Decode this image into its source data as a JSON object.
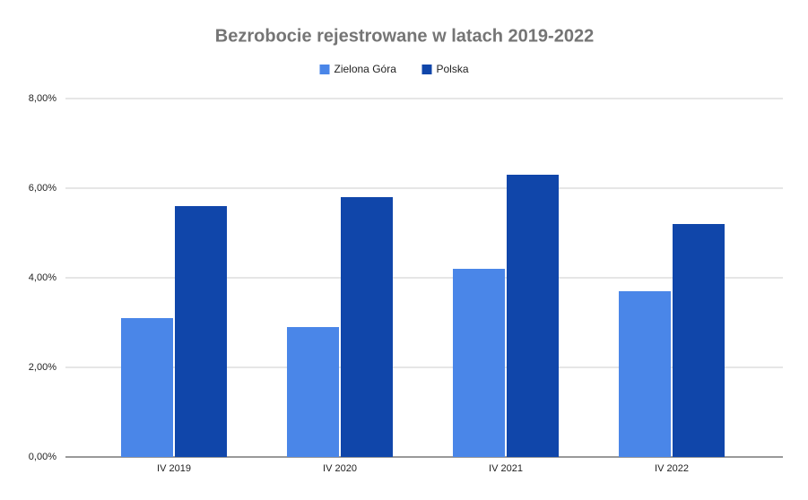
{
  "chart_data": {
    "type": "bar",
    "title": "Bezrobocie rejestrowane w latach 2019-2022",
    "categories": [
      "IV 2019",
      "IV 2020",
      "IV 2021",
      "IV 2022"
    ],
    "series": [
      {
        "name": "Zielona Góra",
        "color": "#4a86e8",
        "values": [
          3.1,
          2.9,
          4.2,
          3.7
        ]
      },
      {
        "name": "Polska",
        "color": "#1046aa",
        "values": [
          5.6,
          5.8,
          6.3,
          5.2
        ]
      }
    ],
    "ylim": [
      0,
      8
    ],
    "yticks": [
      {
        "value": 0,
        "label": "0,00%"
      },
      {
        "value": 2,
        "label": "2,00%"
      },
      {
        "value": 4,
        "label": "4,00%"
      },
      {
        "value": 6,
        "label": "6,00%"
      },
      {
        "value": 8,
        "label": "8,00%"
      }
    ],
    "grid": true,
    "legend": "top"
  }
}
